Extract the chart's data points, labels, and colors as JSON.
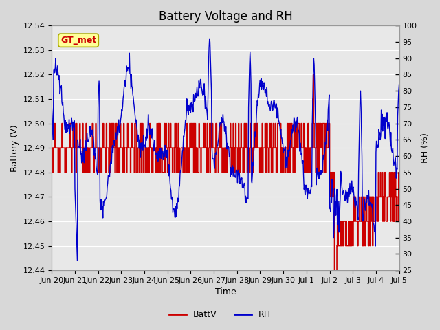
{
  "title": "Battery Voltage and RH",
  "xlabel": "Time",
  "ylabel_left": "Battery (V)",
  "ylabel_right": "RH (%)",
  "ylim_left": [
    12.44,
    12.54
  ],
  "ylim_right": [
    25,
    100
  ],
  "yticks_left": [
    12.44,
    12.45,
    12.46,
    12.47,
    12.48,
    12.49,
    12.5,
    12.51,
    12.52,
    12.53,
    12.54
  ],
  "yticks_right": [
    25,
    30,
    35,
    40,
    45,
    50,
    55,
    60,
    65,
    70,
    75,
    80,
    85,
    90,
    95,
    100
  ],
  "background_color": "#d8d8d8",
  "plot_bg_color": "#e8e8e8",
  "grid_color": "#ffffff",
  "batt_color": "#cc0000",
  "rh_color": "#0000cc",
  "legend_batt": "BattV",
  "legend_rh": "RH",
  "annotation_text": "GT_met",
  "annotation_color": "#cc0000",
  "annotation_bg": "#ffff99",
  "annotation_border": "#aaaa00",
  "title_fontsize": 12,
  "label_fontsize": 9,
  "tick_fontsize": 8
}
